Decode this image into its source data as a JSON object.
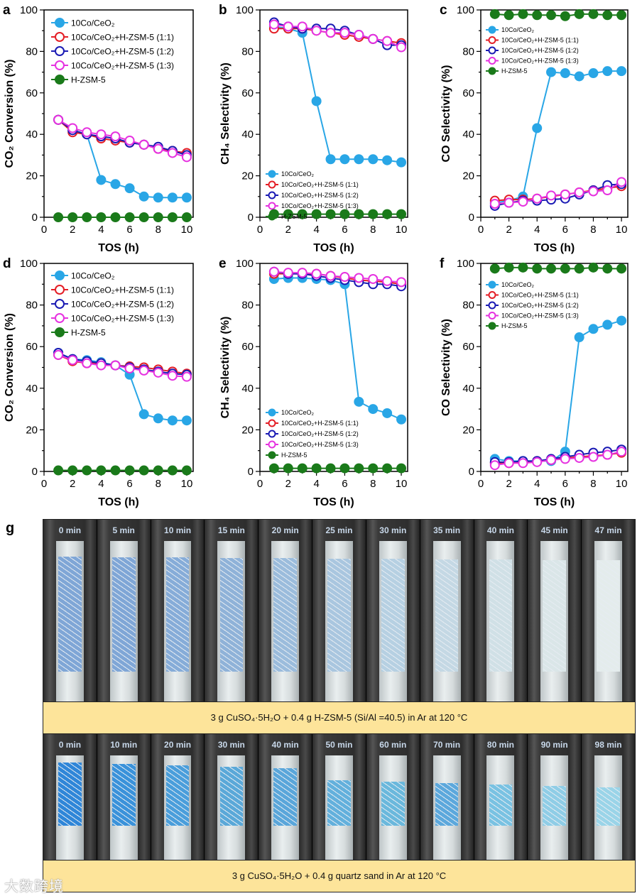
{
  "chart_data": [
    {
      "panel": "a",
      "type": "line",
      "ylabel": "CO₂ Conversion (%)",
      "xlabel": "TOS (h)",
      "xlim": [
        0,
        10.45
      ],
      "ylim": [
        0,
        100
      ],
      "x": [
        1,
        2,
        3,
        4,
        5,
        6,
        7,
        8,
        9,
        10
      ],
      "legend_placement": "top-left",
      "series": [
        {
          "name": "10Co/CeO₂",
          "values": [
            47,
            42,
            40,
            18,
            16,
            14,
            10,
            9.5,
            9.5,
            9.5
          ]
        },
        {
          "name": "10Co/CeO₂+H-ZSM-5 (1:1)",
          "values": [
            47,
            41,
            40,
            38,
            37,
            36,
            35,
            33,
            32,
            31
          ]
        },
        {
          "name": "10Co/CeO₂+H-ZSM-5 (1:2)",
          "values": [
            47,
            42,
            40,
            39,
            38,
            36,
            35,
            34,
            32,
            30
          ]
        },
        {
          "name": "10Co/CeO₂+H-ZSM-5 (1:3)",
          "values": [
            47,
            43,
            41,
            40,
            39,
            37,
            35,
            33,
            31,
            29
          ]
        },
        {
          "name": "H-ZSM-5",
          "values": [
            0,
            0,
            0,
            0,
            0,
            0,
            0,
            0,
            0,
            0
          ]
        }
      ]
    },
    {
      "panel": "b",
      "type": "line",
      "ylabel": "CH₄ Selectivity (%)",
      "xlabel": "TOS (h)",
      "xlim": [
        0,
        10.45
      ],
      "ylim": [
        0,
        100
      ],
      "x": [
        1,
        2,
        3,
        4,
        5,
        6,
        7,
        8,
        9,
        10
      ],
      "legend_placement": "bottom-left",
      "series": [
        {
          "name": "10Co/CeO₂",
          "values": [
            92,
            91,
            89,
            56,
            28,
            28,
            28,
            28,
            27.5,
            26.5
          ]
        },
        {
          "name": "10Co/CeO₂+H-ZSM-5 (1:1)",
          "values": [
            91,
            91,
            91,
            90,
            89,
            88,
            87,
            86,
            85,
            84
          ]
        },
        {
          "name": "10Co/CeO₂+H-ZSM-5 (1:2)",
          "values": [
            94,
            92,
            91,
            91,
            91,
            90,
            88,
            86,
            83,
            83
          ]
        },
        {
          "name": "10Co/CeO₂+H-ZSM-5 (1:3)",
          "values": [
            93,
            92,
            92,
            90,
            89,
            89,
            88,
            86,
            85,
            82
          ]
        },
        {
          "name": "H-ZSM-5",
          "values": [
            1.5,
            1.5,
            1.5,
            1.5,
            1.5,
            1.5,
            1.5,
            1.5,
            1.5,
            1.5
          ]
        }
      ]
    },
    {
      "panel": "c",
      "type": "line",
      "ylabel": "CO Selectivity (%)",
      "xlabel": "TOS (h)",
      "xlim": [
        0,
        10.45
      ],
      "ylim": [
        0,
        100
      ],
      "x": [
        1,
        2,
        3,
        4,
        5,
        6,
        7,
        8,
        9,
        10
      ],
      "legend_placement": "top-left",
      "series": [
        {
          "name": "10Co/CeO₂",
          "values": [
            7,
            8,
            10,
            43,
            70,
            69.5,
            68,
            69.5,
            70.5,
            70.5
          ]
        },
        {
          "name": "10Co/CeO₂+H-ZSM-5 (1:1)",
          "values": [
            8,
            8.5,
            8.5,
            9,
            10,
            11,
            12,
            13,
            14,
            15
          ]
        },
        {
          "name": "10Co/CeO₂+H-ZSM-5 (1:2)",
          "values": [
            5.5,
            7,
            8,
            8,
            8.5,
            9,
            11,
            13,
            15.5,
            16
          ]
        },
        {
          "name": "10Co/CeO₂+H-ZSM-5 (1:3)",
          "values": [
            6.5,
            7,
            7.5,
            9,
            10.5,
            11,
            12,
            12.5,
            13,
            17
          ]
        },
        {
          "name": "H-ZSM-5",
          "values": [
            98,
            97.5,
            98,
            97.5,
            97.5,
            97,
            98,
            98,
            97.5,
            97.5
          ]
        }
      ]
    },
    {
      "panel": "d",
      "type": "line",
      "ylabel": "CO₂ Conversion (%)",
      "xlabel": "TOS (h)",
      "xlim": [
        0,
        10.45
      ],
      "ylim": [
        0,
        100
      ],
      "x": [
        1,
        2,
        3,
        4,
        5,
        6,
        7,
        8,
        9,
        10
      ],
      "legend_placement": "top-left",
      "series": [
        {
          "name": "10Co/CeO₂",
          "values": [
            57,
            54,
            53.5,
            52.5,
            51,
            46.5,
            27.5,
            25.5,
            24.5,
            24.5
          ]
        },
        {
          "name": "10Co/CeO₂+H-ZSM-5 (1:1)",
          "values": [
            56,
            53,
            52,
            52,
            51,
            50.5,
            50,
            49,
            48,
            47
          ]
        },
        {
          "name": "10Co/CeO₂+H-ZSM-5 (1:2)",
          "values": [
            57,
            54,
            53,
            52,
            51,
            50,
            49,
            48,
            47,
            46.5
          ]
        },
        {
          "name": "10Co/CeO₂+H-ZSM-5 (1:3)",
          "values": [
            56,
            53.5,
            52,
            51,
            51,
            49.5,
            48.5,
            47.5,
            46,
            45.5
          ]
        },
        {
          "name": "H-ZSM-5",
          "values": [
            0.5,
            0.5,
            0.5,
            0.5,
            0.5,
            0.5,
            0.5,
            0.5,
            0.5,
            0.5
          ]
        }
      ]
    },
    {
      "panel": "e",
      "type": "line",
      "ylabel": "CH₄ Selectivity (%)",
      "xlabel": "TOS (h)",
      "xlim": [
        0,
        10.45
      ],
      "ylim": [
        0,
        100
      ],
      "x": [
        1,
        2,
        3,
        4,
        5,
        6,
        7,
        8,
        9,
        10
      ],
      "legend_placement": "bottom-left",
      "series": [
        {
          "name": "10Co/CeO₂",
          "values": [
            92.5,
            93,
            93,
            92.5,
            92,
            90,
            33.5,
            30,
            28,
            25
          ]
        },
        {
          "name": "10Co/CeO₂+H-ZSM-5 (1:1)",
          "values": [
            95,
            95,
            95,
            95,
            94,
            93,
            92,
            91.5,
            91,
            90
          ]
        },
        {
          "name": "10Co/CeO₂+H-ZSM-5 (1:2)",
          "values": [
            96,
            95,
            95,
            94,
            93,
            92,
            91,
            90,
            90,
            89
          ]
        },
        {
          "name": "10Co/CeO₂+H-ZSM-5 (1:3)",
          "values": [
            96,
            95.5,
            95.5,
            95,
            94,
            93.5,
            93,
            92.5,
            91.5,
            91
          ]
        },
        {
          "name": "H-ZSM-5",
          "values": [
            1.5,
            1.5,
            1.5,
            1.5,
            1.5,
            1.5,
            1.5,
            1.5,
            1.5,
            1.5
          ]
        }
      ]
    },
    {
      "panel": "f",
      "type": "line",
      "ylabel": "CO Selectivity (%)",
      "xlabel": "TOS (h)",
      "xlim": [
        0,
        10.45
      ],
      "ylim": [
        0,
        100
      ],
      "x": [
        1,
        2,
        3,
        4,
        5,
        6,
        7,
        8,
        9,
        10
      ],
      "legend_placement": "top-left",
      "series": [
        {
          "name": "10Co/CeO₂",
          "values": [
            6,
            5,
            5,
            5,
            5,
            9.5,
            64.5,
            68.5,
            70.5,
            72.5
          ]
        },
        {
          "name": "10Co/CeO₂+H-ZSM-5 (1:1)",
          "values": [
            4,
            4,
            4.5,
            5,
            5.5,
            6.5,
            7,
            7.5,
            8,
            9
          ]
        },
        {
          "name": "10Co/CeO₂+H-ZSM-5 (1:2)",
          "values": [
            4.5,
            4.5,
            5,
            5,
            6,
            7,
            8,
            9,
            9.5,
            10.5
          ]
        },
        {
          "name": "10Co/CeO₂+H-ZSM-5 (1:3)",
          "values": [
            3,
            4,
            4,
            4.5,
            5.5,
            6,
            6.5,
            7,
            8,
            9.5
          ]
        },
        {
          "name": "H-ZSM-5",
          "values": [
            97.5,
            98,
            98,
            97.5,
            97.5,
            97.5,
            97.5,
            98,
            97.5,
            97.5
          ]
        }
      ]
    }
  ],
  "series_colors": [
    "#29a6e6",
    "#e41e26",
    "#1a1ab4",
    "#e632e0",
    "#1a7a1a"
  ],
  "series_filled": [
    true,
    false,
    false,
    false,
    true
  ],
  "x_ticks": [
    "0",
    "2",
    "4",
    "6",
    "8",
    "10"
  ],
  "y_ticks": [
    "0",
    "20",
    "40",
    "60",
    "80",
    "100"
  ],
  "panel_g": {
    "label": "g",
    "row1": {
      "times": [
        "0 min",
        "5 min",
        "10 min",
        "15 min",
        "20 min",
        "25 min",
        "30 min",
        "35 min",
        "40 min",
        "45 min",
        "47 min"
      ],
      "fill_colors": [
        "#7fa6d6",
        "#7fa6d6",
        "#86acd8",
        "#8fb2d8",
        "#9bbcdc",
        "#a9c6df",
        "#b6d0e2",
        "#c4d8e4",
        "#d0e0e6",
        "#dae6e8",
        "#e4ecec"
      ],
      "caption": "3 g CuSO₄·5H₂O + 0.4 g H-ZSM-5 (Si/Al =40.5) in Ar at 120 °C"
    },
    "row2": {
      "times": [
        "0 min",
        "10 min",
        "20 min",
        "30 min",
        "40 min",
        "50 min",
        "60 min",
        "70 min",
        "80 min",
        "90 min",
        "98 min"
      ],
      "fill_colors": [
        "#2f86d8",
        "#3a92da",
        "#4a9edb",
        "#5aa8d8",
        "#5aa6da",
        "#63b0dc",
        "#6ab8dc",
        "#5ca8dc",
        "#79c2e2",
        "#8fcde6",
        "#9ad4e8"
      ],
      "caption": "3 g CuSO₄·5H₂O + 0.4 g quartz sand in Ar at 120 °C"
    }
  },
  "watermark": "大数跨境"
}
